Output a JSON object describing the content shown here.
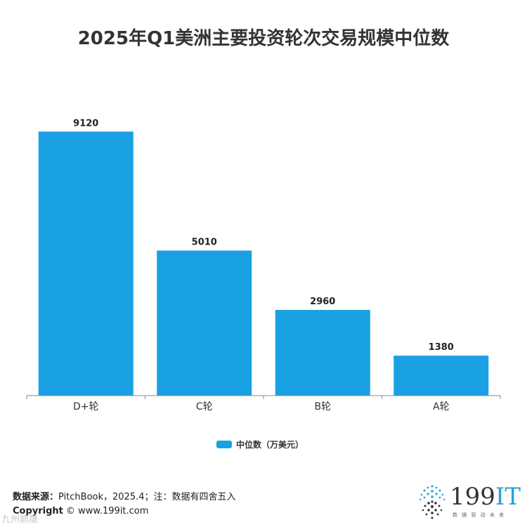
{
  "title": "2025年Q1美洲主要投资轮次交易规模中位数",
  "chart_data": {
    "type": "bar",
    "categories": [
      "D+轮",
      "C轮",
      "B轮",
      "A轮"
    ],
    "series": [
      {
        "name": "中位数（万美元）",
        "values": [
          9120,
          5010,
          2960,
          1380
        ]
      }
    ],
    "data_labels": [
      "9120",
      "5010",
      "2960",
      "1380"
    ],
    "ylim": [
      0,
      10000
    ],
    "grid": false,
    "legend_position": "bottom",
    "bar_color": "#1aa1e3"
  },
  "legend": {
    "label": "中位数（万美元）",
    "color": "#1aa1e3"
  },
  "footer": {
    "source_label": "数据来源：",
    "source_text": "PitchBook，2025.4；注：数据有四舍五入",
    "copyright_label": "Copyright",
    "copyright_text": " © www.199it.com"
  },
  "logo": {
    "text_main": "199",
    "text_accent": "IT",
    "tagline": "数 据 驱 动 未 来"
  },
  "watermark": "九州鼎晟"
}
